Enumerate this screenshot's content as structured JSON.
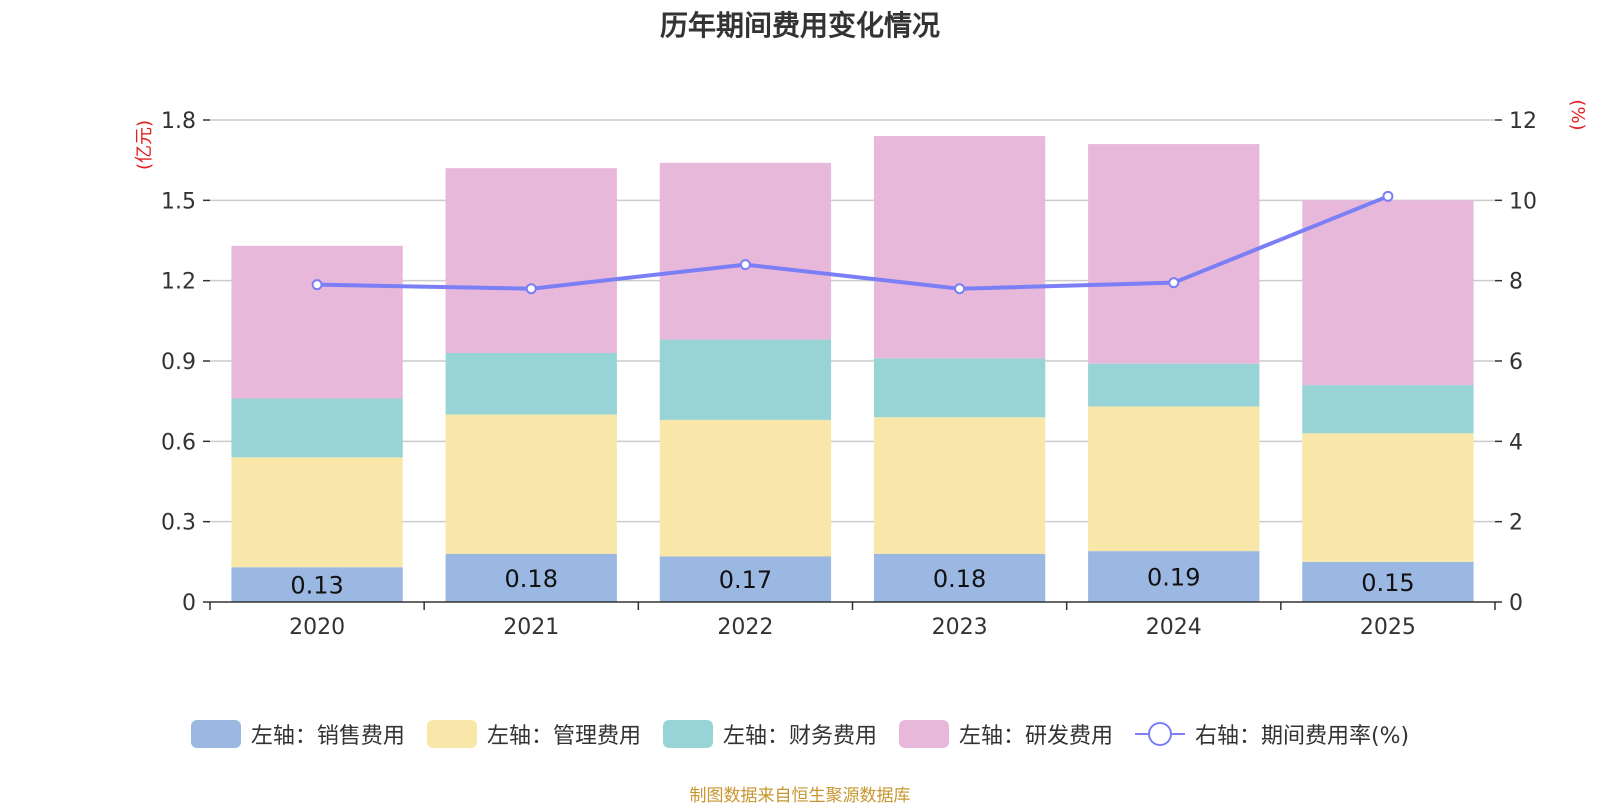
{
  "chart_data": {
    "type": "bar",
    "title": "历年期间费用变化情况",
    "categories": [
      "2020",
      "2021",
      "2022",
      "2023",
      "2024",
      "2025"
    ],
    "left_axis": {
      "label": "(亿元)",
      "ylim": [
        0,
        1.8
      ],
      "ticks": [
        "0",
        "0.3",
        "0.6",
        "0.9",
        "1.2",
        "1.5",
        "1.8"
      ]
    },
    "right_axis": {
      "label": "(%)",
      "ylim": [
        0,
        12
      ],
      "ticks": [
        "0",
        "2",
        "4",
        "6",
        "8",
        "10",
        "12"
      ]
    },
    "series": [
      {
        "name": "左轴：销售费用",
        "type": "bar",
        "axis": "left",
        "color": "#9bb8e3",
        "values": [
          0.13,
          0.18,
          0.17,
          0.18,
          0.19,
          0.15
        ],
        "labels": [
          "0.13",
          "0.18",
          "0.17",
          "0.18",
          "0.19",
          "0.15"
        ]
      },
      {
        "name": "左轴：管理费用",
        "type": "bar",
        "axis": "left",
        "color": "#f8e7a8",
        "values": [
          0.41,
          0.52,
          0.51,
          0.51,
          0.54,
          0.48
        ]
      },
      {
        "name": "左轴：财务费用",
        "type": "bar",
        "axis": "left",
        "color": "#98d4d6",
        "values": [
          0.22,
          0.23,
          0.3,
          0.22,
          0.16,
          0.18
        ]
      },
      {
        "name": "左轴：研发费用",
        "type": "bar",
        "axis": "left",
        "color": "#e8b8da",
        "values": [
          0.57,
          0.69,
          0.66,
          0.83,
          0.82,
          0.69
        ]
      },
      {
        "name": "右轴：期间费用率(%)",
        "type": "line",
        "axis": "right",
        "color": "#7b7ff6",
        "values": [
          7.9,
          7.8,
          8.4,
          7.8,
          7.95,
          10.1
        ]
      }
    ],
    "grid": true,
    "legend_position": "bottom"
  },
  "source": "制图数据来自恒生聚源数据库"
}
